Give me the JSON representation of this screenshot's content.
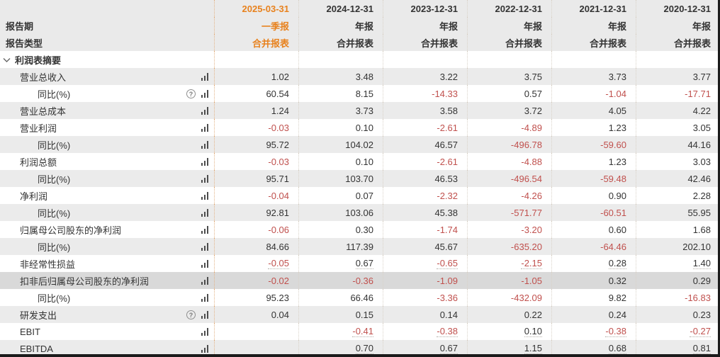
{
  "table": {
    "row_labels": {
      "period": "报告期",
      "report_type": "报告类型"
    },
    "section": {
      "label": "利润表摘要"
    },
    "columns": [
      {
        "date": "2025-03-31",
        "period": "一季报",
        "report_type": "合并报表",
        "highlight": true
      },
      {
        "date": "2024-12-31",
        "period": "年报",
        "report_type": "合并报表",
        "highlight": false
      },
      {
        "date": "2023-12-31",
        "period": "年报",
        "report_type": "合并报表",
        "highlight": false
      },
      {
        "date": "2022-12-31",
        "period": "年报",
        "report_type": "合并报表",
        "highlight": false
      },
      {
        "date": "2021-12-31",
        "period": "年报",
        "report_type": "合并报表",
        "highlight": false
      },
      {
        "date": "2020-12-31",
        "period": "年报",
        "report_type": "合并报表",
        "highlight": false
      }
    ],
    "rows": [
      {
        "label": "营业总收入",
        "indent": 1,
        "help": false,
        "underline": false,
        "highlight": false,
        "values": [
          "1.02",
          "3.48",
          "3.22",
          "3.75",
          "3.73",
          "3.77"
        ]
      },
      {
        "label": "同比(%)",
        "indent": 2,
        "help": true,
        "underline": false,
        "highlight": false,
        "values": [
          "60.54",
          "8.15",
          "-14.33",
          "0.57",
          "-1.04",
          "-17.71"
        ]
      },
      {
        "label": "营业总成本",
        "indent": 1,
        "help": false,
        "underline": false,
        "highlight": false,
        "values": [
          "1.24",
          "3.73",
          "3.58",
          "3.72",
          "4.05",
          "4.22"
        ]
      },
      {
        "label": "营业利润",
        "indent": 1,
        "help": false,
        "underline": false,
        "highlight": false,
        "values": [
          "-0.03",
          "0.10",
          "-2.61",
          "-4.89",
          "1.23",
          "3.05"
        ]
      },
      {
        "label": "同比(%)",
        "indent": 2,
        "help": false,
        "underline": false,
        "highlight": false,
        "values": [
          "95.72",
          "104.02",
          "46.57",
          "-496.78",
          "-59.60",
          "44.16"
        ]
      },
      {
        "label": "利润总额",
        "indent": 1,
        "help": false,
        "underline": false,
        "highlight": false,
        "values": [
          "-0.03",
          "0.10",
          "-2.61",
          "-4.88",
          "1.23",
          "3.03"
        ]
      },
      {
        "label": "同比(%)",
        "indent": 2,
        "help": false,
        "underline": false,
        "highlight": false,
        "values": [
          "95.71",
          "103.70",
          "46.53",
          "-496.54",
          "-59.48",
          "42.46"
        ]
      },
      {
        "label": "净利润",
        "indent": 1,
        "help": false,
        "underline": false,
        "highlight": false,
        "values": [
          "-0.04",
          "0.07",
          "-2.32",
          "-4.26",
          "0.90",
          "2.28"
        ]
      },
      {
        "label": "同比(%)",
        "indent": 2,
        "help": false,
        "underline": false,
        "highlight": false,
        "values": [
          "92.81",
          "103.06",
          "45.38",
          "-571.77",
          "-60.51",
          "55.95"
        ]
      },
      {
        "label": "归属母公司股东的净利润",
        "indent": 1,
        "help": false,
        "underline": false,
        "highlight": false,
        "values": [
          "-0.06",
          "0.30",
          "-1.74",
          "-3.20",
          "0.60",
          "1.68"
        ]
      },
      {
        "label": "同比(%)",
        "indent": 2,
        "help": false,
        "underline": false,
        "highlight": false,
        "values": [
          "84.66",
          "117.39",
          "45.67",
          "-635.20",
          "-64.46",
          "202.10"
        ]
      },
      {
        "label": "非经常性损益",
        "indent": 1,
        "help": false,
        "underline": true,
        "highlight": false,
        "values": [
          "-0.05",
          "0.67",
          "-0.65",
          "-2.15",
          "0.28",
          "1.40"
        ]
      },
      {
        "label": "扣非后归属母公司股东的净利润",
        "indent": 1,
        "help": false,
        "underline": false,
        "highlight": true,
        "values": [
          "-0.02",
          "-0.36",
          "-1.09",
          "-1.05",
          "0.32",
          "0.29"
        ]
      },
      {
        "label": "同比(%)",
        "indent": 2,
        "help": false,
        "underline": false,
        "highlight": false,
        "values": [
          "95.23",
          "66.46",
          "-3.36",
          "-432.09",
          "9.82",
          "-16.83"
        ]
      },
      {
        "label": "研发支出",
        "indent": 1,
        "help": true,
        "underline": false,
        "highlight": false,
        "values": [
          "0.04",
          "0.15",
          "0.14",
          "0.22",
          "0.24",
          "0.23"
        ]
      },
      {
        "label": "EBIT",
        "indent": 1,
        "help": false,
        "underline": true,
        "highlight": false,
        "values": [
          "",
          "-0.41",
          "-0.38",
          "0.10",
          "-0.38",
          "-0.27"
        ]
      },
      {
        "label": "EBITDA",
        "indent": 1,
        "help": false,
        "underline": true,
        "highlight": false,
        "values": [
          "",
          "0.70",
          "0.67",
          "1.15",
          "0.68",
          "0.81"
        ]
      }
    ]
  },
  "icons": {
    "help_glyph": "?"
  },
  "colors": {
    "accent_orange": "#e8821e",
    "negative_red": "#c0504d",
    "stripe_gray": "#ebebeb",
    "highlight_gray": "#d9d9d9"
  }
}
